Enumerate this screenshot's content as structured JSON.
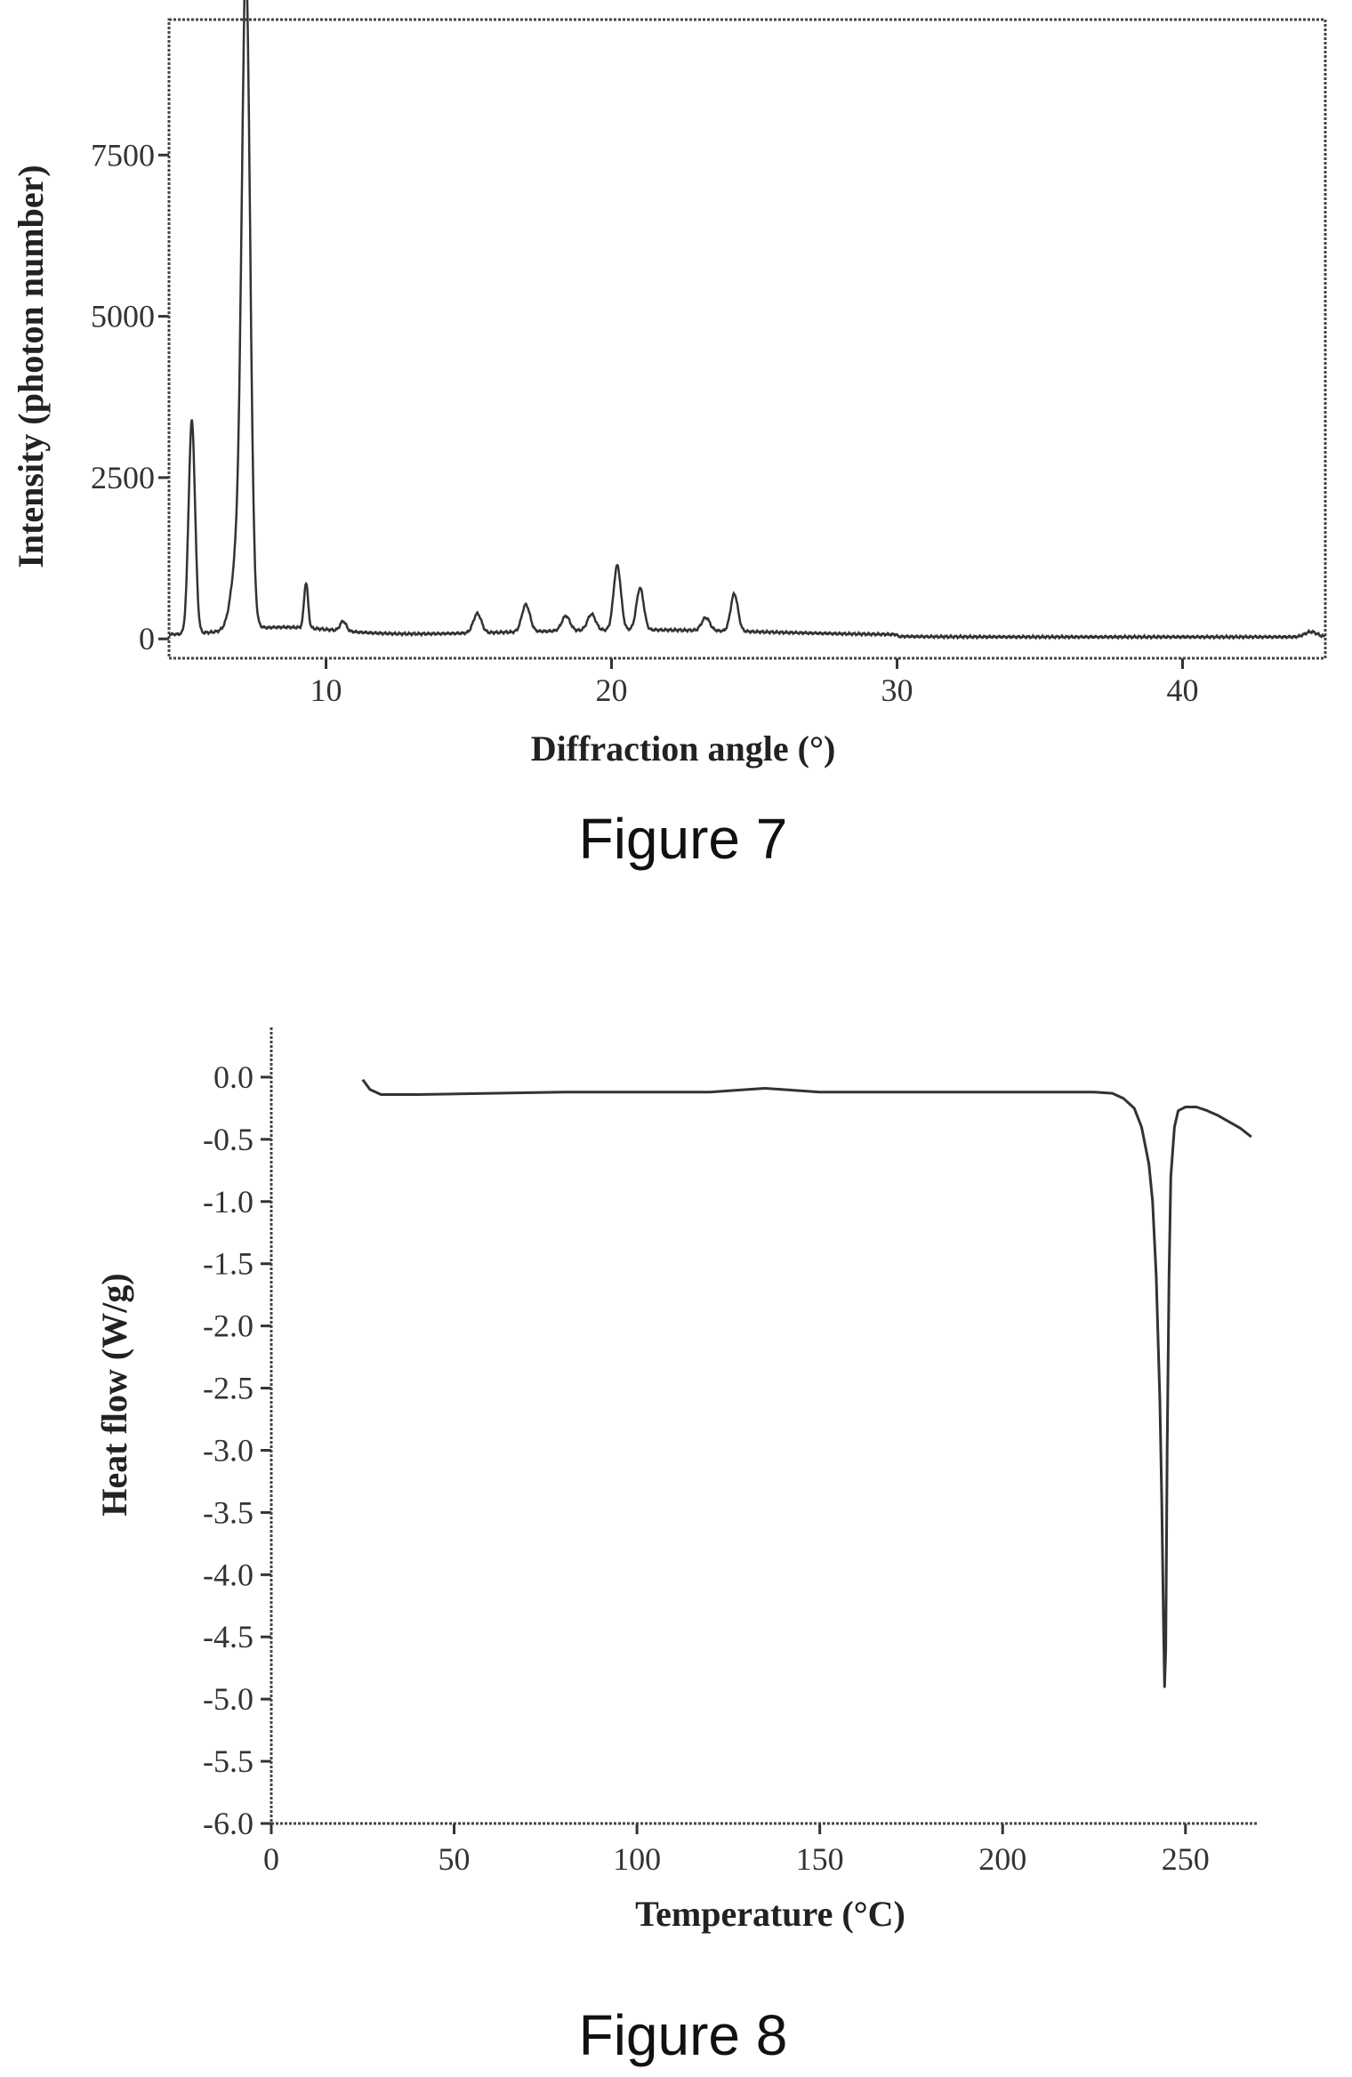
{
  "chart_data": [
    {
      "type": "line",
      "caption": "Figure 7",
      "xlabel": "Diffraction angle (°)",
      "ylabel": "Intensity (photon number)",
      "xlim": [
        4.5,
        45
      ],
      "ylim": [
        -300,
        9600
      ],
      "x_ticks": [
        10,
        20,
        30,
        40
      ],
      "y_ticks": [
        0,
        2500,
        5000,
        7500
      ],
      "x_tick_labels": [
        "10",
        "20",
        "30",
        "40"
      ],
      "y_tick_labels": [
        "0",
        "2500",
        "5000",
        "7500"
      ],
      "grid": false,
      "series": [
        {
          "peaks": [
            {
              "x": 5.3,
              "y": 3300,
              "w": 0.16
            },
            {
              "x": 7.2,
              "y": 9200,
              "w": 0.2
            },
            {
              "x": 7.0,
              "y": 1500,
              "w": 0.35
            },
            {
              "x": 9.3,
              "y": 700,
              "w": 0.1
            },
            {
              "x": 10.6,
              "y": 150,
              "w": 0.15
            },
            {
              "x": 15.3,
              "y": 300,
              "w": 0.2
            },
            {
              "x": 17.0,
              "y": 420,
              "w": 0.2
            },
            {
              "x": 18.4,
              "y": 230,
              "w": 0.2
            },
            {
              "x": 19.3,
              "y": 250,
              "w": 0.2
            },
            {
              "x": 20.2,
              "y": 1000,
              "w": 0.18
            },
            {
              "x": 21.0,
              "y": 650,
              "w": 0.18
            },
            {
              "x": 23.3,
              "y": 200,
              "w": 0.2
            },
            {
              "x": 24.3,
              "y": 580,
              "w": 0.18
            },
            {
              "x": 44.5,
              "y": 80,
              "w": 0.3
            }
          ]
        }
      ]
    },
    {
      "type": "line",
      "caption": "Figure 8",
      "xlabel": "Temperature (°C)",
      "ylabel": "Heat flow (W/g)",
      "xlim": [
        0,
        270
      ],
      "ylim": [
        -6.0,
        0.4
      ],
      "x_ticks": [
        0,
        50,
        100,
        150,
        200,
        250
      ],
      "y_ticks": [
        0.0,
        -0.5,
        -1.0,
        -1.5,
        -2.0,
        -2.5,
        -3.0,
        -3.5,
        -4.0,
        -4.5,
        -5.0,
        -5.5,
        -6.0
      ],
      "x_tick_labels": [
        "0",
        "50",
        "100",
        "150",
        "200",
        "250"
      ],
      "y_tick_labels": [
        "0.0",
        "-0.5",
        "-1.0",
        "-1.5",
        "-2.0",
        "-2.5",
        "-3.0",
        "-3.5",
        "-4.0",
        "-4.5",
        "-5.0",
        "-5.5",
        "-6.0"
      ],
      "grid": false,
      "series": [
        {
          "x": [
            25,
            27,
            30,
            40,
            60,
            80,
            100,
            120,
            130,
            135,
            140,
            150,
            180,
            210,
            225,
            230,
            233,
            236,
            238,
            240,
            241,
            242,
            243,
            243.5,
            244,
            244.3,
            244.6,
            245,
            245.5,
            246,
            247,
            248,
            250,
            253,
            256,
            259,
            262,
            265,
            268
          ],
          "y": [
            -0.02,
            -0.1,
            -0.14,
            -0.14,
            -0.13,
            -0.12,
            -0.12,
            -0.12,
            -0.1,
            -0.09,
            -0.1,
            -0.12,
            -0.12,
            -0.12,
            -0.12,
            -0.13,
            -0.17,
            -0.25,
            -0.4,
            -0.7,
            -1.0,
            -1.6,
            -2.6,
            -3.4,
            -4.4,
            -4.9,
            -4.6,
            -3.0,
            -1.6,
            -0.8,
            -0.4,
            -0.27,
            -0.24,
            -0.24,
            -0.27,
            -0.31,
            -0.36,
            -0.41,
            -0.48
          ]
        }
      ]
    }
  ]
}
